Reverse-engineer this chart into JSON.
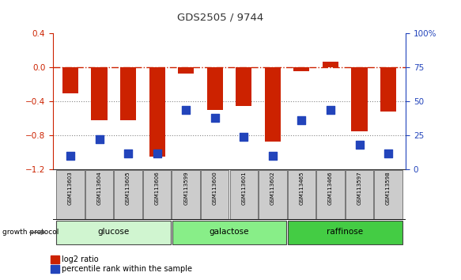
{
  "title": "GDS2505 / 9744",
  "samples": [
    "GSM113603",
    "GSM113604",
    "GSM113605",
    "GSM113606",
    "GSM113599",
    "GSM113600",
    "GSM113601",
    "GSM113602",
    "GSM113465",
    "GSM113466",
    "GSM113597",
    "GSM113598"
  ],
  "log2_ratio": [
    -0.3,
    -0.62,
    -0.62,
    -1.05,
    -0.07,
    -0.5,
    -0.45,
    -0.87,
    -0.04,
    0.07,
    -0.75,
    -0.52
  ],
  "percentile_rank": [
    10,
    22,
    12,
    12,
    44,
    38,
    24,
    10,
    36,
    44,
    18,
    12
  ],
  "groups": [
    {
      "label": "glucose",
      "start": 0,
      "end": 3,
      "color": "#d0f5d0"
    },
    {
      "label": "galactose",
      "start": 4,
      "end": 7,
      "color": "#88ee88"
    },
    {
      "label": "raffinose",
      "start": 8,
      "end": 11,
      "color": "#44cc44"
    }
  ],
  "ylim_left": [
    -1.2,
    0.4
  ],
  "ylim_right": [
    0,
    100
  ],
  "yticks_left": [
    -1.2,
    -0.8,
    -0.4,
    0.0,
    0.4
  ],
  "yticks_right": [
    0,
    25,
    50,
    75,
    100
  ],
  "ytick_right_labels": [
    "0",
    "25",
    "50",
    "75",
    "100%"
  ],
  "bar_color": "#cc2200",
  "dot_color": "#2244bb",
  "hline_color": "#cc2200",
  "dot_color_dark": "#1133aa",
  "bar_width": 0.55,
  "dot_size": 45,
  "growth_protocol_label": "growth protocol",
  "legend_log2": "log2 ratio",
  "legend_pct": "percentile rank within the sample"
}
